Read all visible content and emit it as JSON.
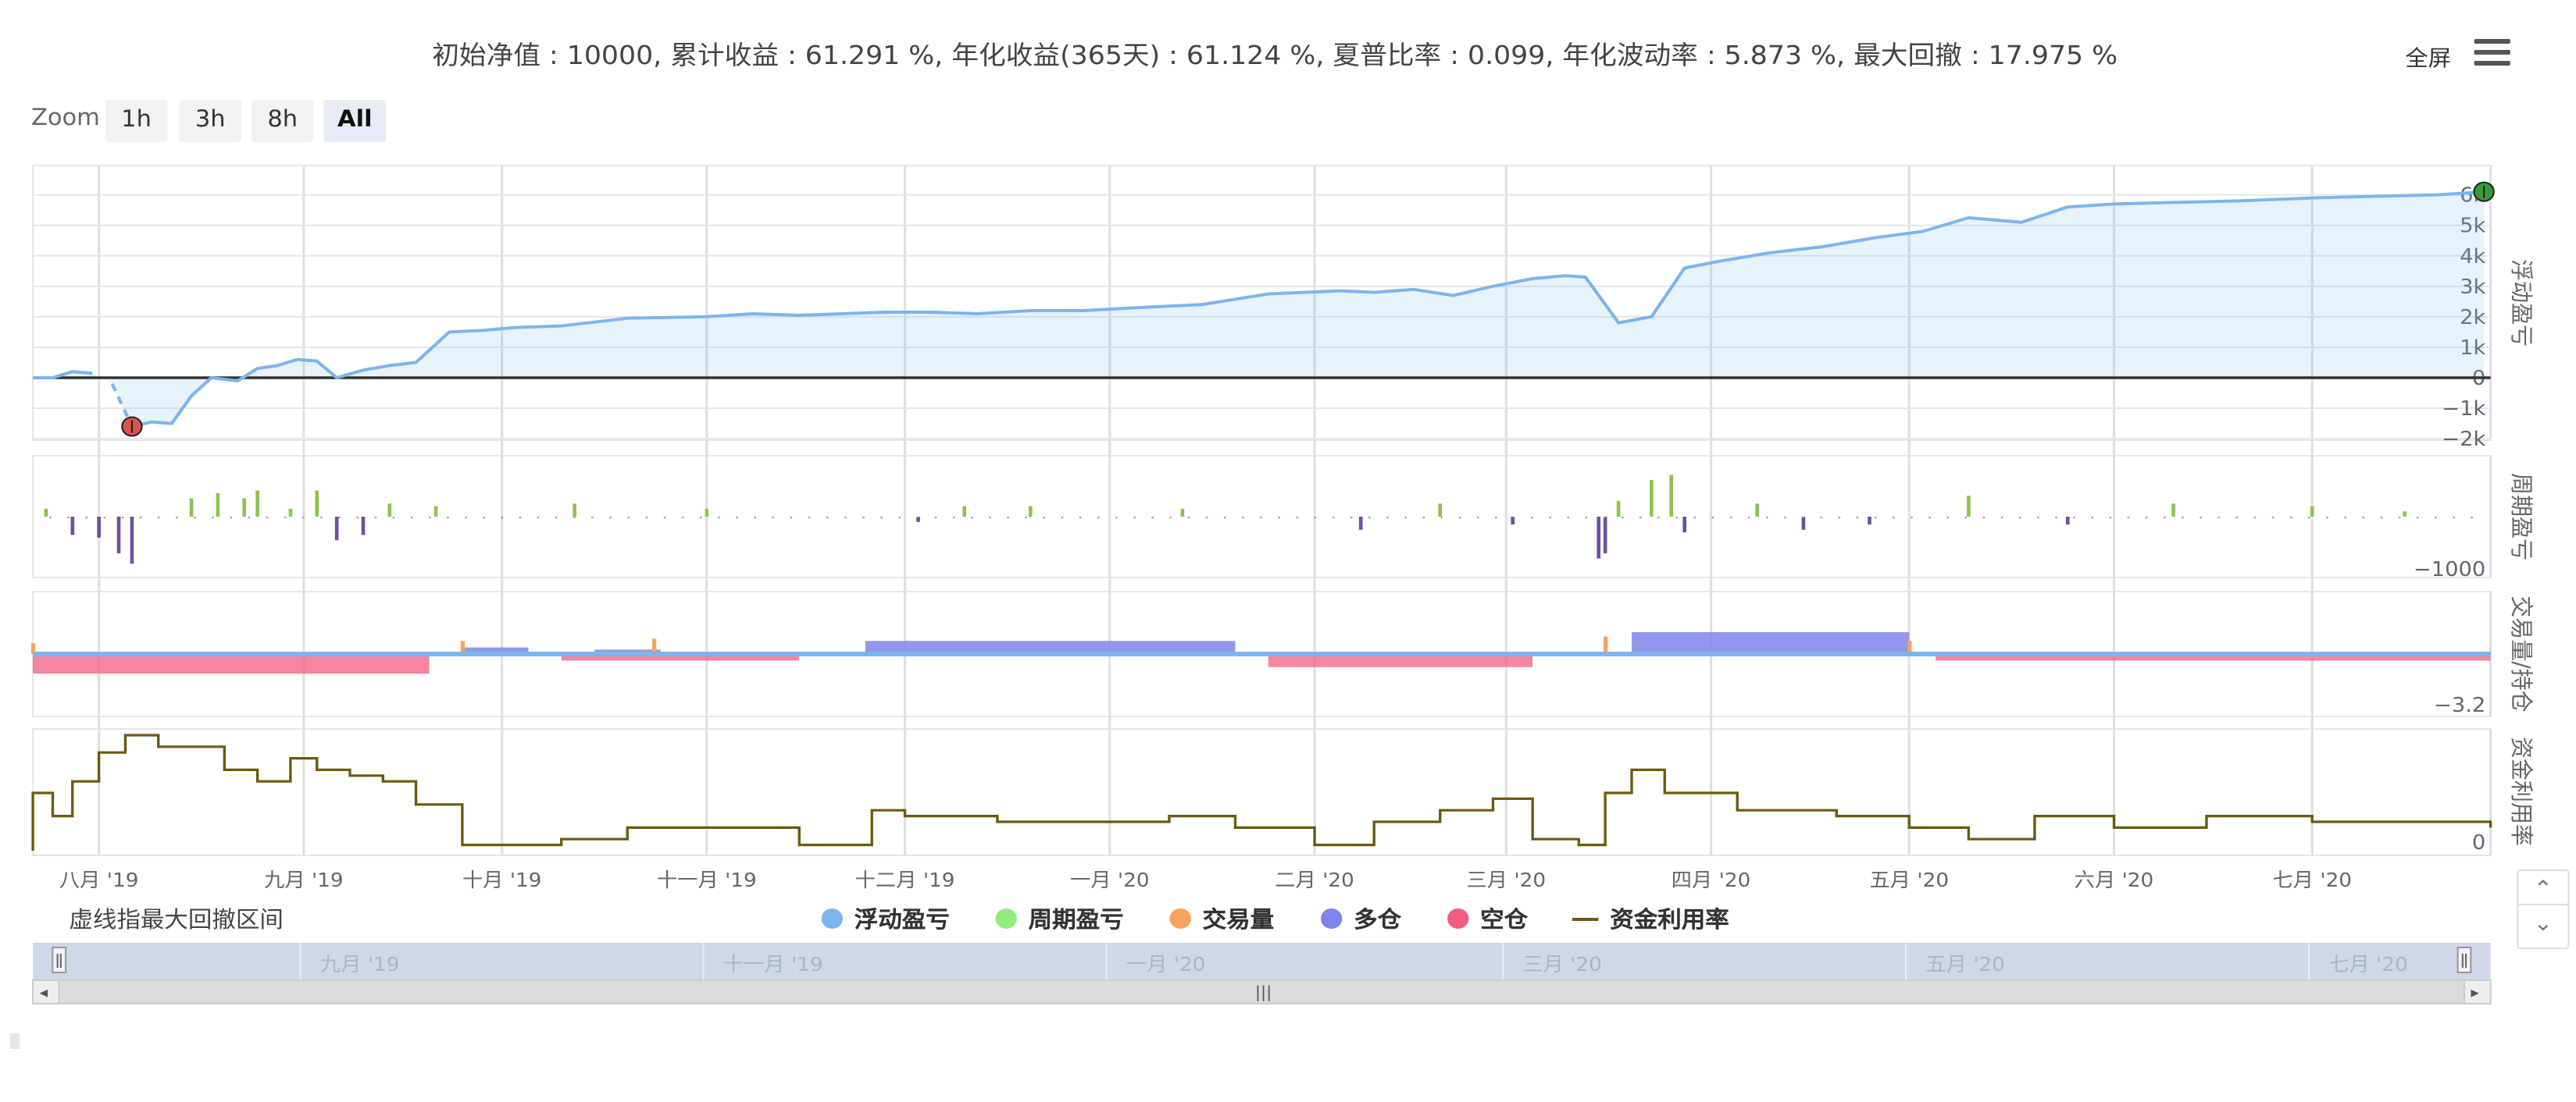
{
  "summary": "初始净值 : 10000, 累计收益 : 61.291 %, 年化收益(365天) : 61.124 %, 夏普比率 : 0.099, 年化波动率 : 5.873 %, 最大回撤 : 17.975 %",
  "toolbar": {
    "fullscreen_label": "全屏",
    "menu_icon": "hamburger-menu-icon"
  },
  "zoom": {
    "label": "Zoom",
    "buttons": [
      "1h",
      "3h",
      "8h",
      "All"
    ],
    "selected": "All"
  },
  "note": "虚线指最大回撤区间",
  "legend": [
    {
      "name": "浮动盈亏",
      "color": "#7cb5ec",
      "symbol": "dot"
    },
    {
      "name": "周期盈亏",
      "color": "#90ed7d",
      "symbol": "dot"
    },
    {
      "name": "交易量",
      "color": "#f7a35c",
      "symbol": "dot"
    },
    {
      "name": "多仓",
      "color": "#8085e9",
      "symbol": "dot"
    },
    {
      "name": "空仓",
      "color": "#f15c80",
      "symbol": "dot"
    },
    {
      "name": "资金利用率",
      "color": "#6b5a0e",
      "symbol": "line"
    }
  ],
  "chart_data": {
    "type": "line",
    "x_ticks": [
      "八月 '19",
      "九月 '19",
      "十月 '19",
      "十一月 '19",
      "十二月 '19",
      "一月 '20",
      "二月 '20",
      "三月 '20",
      "四月 '20",
      "五月 '20",
      "六月 '20",
      "七月 '20"
    ],
    "navigator_ticks": [
      "九月 '19",
      "十一月 '19",
      "一月 '20",
      "三月 '20",
      "五月 '20",
      "七月 '20"
    ],
    "panels": [
      {
        "name": "浮动盈亏",
        "color": "#7cb5ec",
        "type": "area",
        "yticks": [
          "6k",
          "5k",
          "4k",
          "3k",
          "2k",
          "1k",
          "0",
          "−1k",
          "−2k"
        ],
        "ylim": [
          -2000,
          6000
        ],
        "dates": [
          "2019-07-22",
          "2019-07-25",
          "2019-07-28",
          "2019-07-31",
          "2019-08-03",
          "2019-08-06",
          "2019-08-09",
          "2019-08-12",
          "2019-08-15",
          "2019-08-18",
          "2019-08-22",
          "2019-08-25",
          "2019-08-28",
          "2019-08-31",
          "2019-09-03",
          "2019-09-06",
          "2019-09-10",
          "2019-09-14",
          "2019-09-18",
          "2019-09-23",
          "2019-09-28",
          "2019-10-03",
          "2019-10-10",
          "2019-10-20",
          "2019-11-01",
          "2019-11-08",
          "2019-11-15",
          "2019-11-28",
          "2019-12-05",
          "2019-12-12",
          "2019-12-20",
          "2019-12-28",
          "2020-01-05",
          "2020-01-15",
          "2020-01-25",
          "2020-02-05",
          "2020-02-10",
          "2020-02-16",
          "2020-02-22",
          "2020-02-28",
          "2020-03-05",
          "2020-03-10",
          "2020-03-13",
          "2020-03-18",
          "2020-03-23",
          "2020-03-28",
          "2020-04-03",
          "2020-04-10",
          "2020-04-18",
          "2020-04-26",
          "2020-05-03",
          "2020-05-10",
          "2020-05-18",
          "2020-05-25",
          "2020-06-01",
          "2020-06-10",
          "2020-06-20",
          "2020-07-01",
          "2020-07-10",
          "2020-07-20",
          "2020-07-27"
        ],
        "values": [
          0,
          0,
          200,
          150,
          -200,
          -1600,
          -1450,
          -1500,
          -600,
          0,
          -100,
          300,
          400,
          600,
          550,
          0,
          250,
          400,
          500,
          1500,
          1550,
          1650,
          1700,
          1950,
          2000,
          2100,
          2050,
          2150,
          2150,
          2100,
          2200,
          2200,
          2300,
          2400,
          2750,
          2850,
          2800,
          2900,
          2700,
          3000,
          3250,
          3350,
          3300,
          1800,
          2000,
          3600,
          3850,
          4100,
          4300,
          4600,
          4800,
          5250,
          5100,
          5600,
          5700,
          5750,
          5800,
          5900,
          5950,
          6000,
          6100
        ],
        "drawdown": {
          "start": "2019-08-01",
          "end": "2019-08-06",
          "min": -1600
        },
        "markers": [
          {
            "date": "2019-08-06",
            "value": -1600,
            "color": "#d9534f"
          },
          {
            "date": "2020-07-27",
            "value": 6100,
            "color": "#3a9a3a"
          }
        ]
      },
      {
        "name": "周期盈亏",
        "type": "bar",
        "yticks": [
          "−1000"
        ],
        "positive_color": "#90c14f",
        "negative_color": "#6e4f9e",
        "dates": [
          "2019-07-24",
          "2019-07-28",
          "2019-08-01",
          "2019-08-04",
          "2019-08-06",
          "2019-08-15",
          "2019-08-19",
          "2019-08-23",
          "2019-08-25",
          "2019-08-30",
          "2019-09-03",
          "2019-09-06",
          "2019-09-10",
          "2019-09-14",
          "2019-09-21",
          "2019-10-12",
          "2019-11-01",
          "2019-12-03",
          "2019-12-10",
          "2019-12-20",
          "2020-01-12",
          "2020-02-08",
          "2020-02-20",
          "2020-03-02",
          "2020-03-15",
          "2020-03-16",
          "2020-03-18",
          "2020-03-23",
          "2020-03-26",
          "2020-03-28",
          "2020-04-08",
          "2020-04-15",
          "2020-04-25",
          "2020-05-10",
          "2020-05-25",
          "2020-06-10",
          "2020-07-01",
          "2020-07-15"
        ],
        "values": [
          150,
          -350,
          -400,
          -700,
          -900,
          350,
          450,
          350,
          500,
          150,
          500,
          -450,
          -350,
          250,
          200,
          250,
          150,
          -100,
          200,
          200,
          150,
          -250,
          250,
          -150,
          -800,
          -700,
          300,
          700,
          800,
          -300,
          250,
          -250,
          -150,
          400,
          -150,
          250,
          200,
          100
        ]
      },
      {
        "name": "交易量/持仓",
        "type": "area",
        "yticks": [
          "−3.2"
        ],
        "series": [
          {
            "name": "多仓",
            "color": "#8085e9",
            "segments": [
              {
                "start": "2019-09-25",
                "end": "2019-10-05",
                "value": 0.3
              },
              {
                "start": "2019-10-15",
                "end": "2019-10-25",
                "value": 0.2
              },
              {
                "start": "2019-11-25",
                "end": "2020-01-20",
                "value": 0.6
              },
              {
                "start": "2020-03-20",
                "end": "2020-05-01",
                "value": 1.0
              }
            ]
          },
          {
            "name": "空仓",
            "color": "#f15c80",
            "segments": [
              {
                "start": "2019-07-22",
                "end": "2019-09-20",
                "value": -0.9
              },
              {
                "start": "2019-10-10",
                "end": "2019-11-15",
                "value": -0.3
              },
              {
                "start": "2020-01-25",
                "end": "2020-03-05",
                "value": -0.6
              },
              {
                "start": "2020-05-05",
                "end": "2020-07-28",
                "value": -0.3
              }
            ]
          },
          {
            "name": "交易量",
            "color": "#f7a35c",
            "dates": [
              "2019-07-22",
              "2019-09-25",
              "2019-10-24",
              "2020-03-16",
              "2020-05-01"
            ],
            "values": [
              0.5,
              0.6,
              0.7,
              0.8,
              0.6
            ]
          }
        ]
      },
      {
        "name": "资金利用率",
        "type": "step",
        "color": "#6b5a0e",
        "yticks": [
          "0"
        ],
        "dates": [
          "2019-07-22",
          "2019-07-25",
          "2019-07-28",
          "2019-08-01",
          "2019-08-05",
          "2019-08-10",
          "2019-08-20",
          "2019-08-25",
          "2019-08-30",
          "2019-09-03",
          "2019-09-08",
          "2019-09-13",
          "2019-09-18",
          "2019-09-25",
          "2019-10-01",
          "2019-10-10",
          "2019-10-20",
          "2019-11-01",
          "2019-11-15",
          "2019-11-26",
          "2019-12-01",
          "2019-12-15",
          "2020-01-10",
          "2020-01-20",
          "2020-02-01",
          "2020-02-10",
          "2020-02-20",
          "2020-02-28",
          "2020-03-05",
          "2020-03-12",
          "2020-03-16",
          "2020-03-20",
          "2020-03-25",
          "2020-04-05",
          "2020-04-20",
          "2020-05-01",
          "2020-05-10",
          "2020-05-20",
          "2020-06-01",
          "2020-06-15",
          "2020-07-01",
          "2020-07-28"
        ],
        "values": [
          0.5,
          0.3,
          0.6,
          0.85,
          1.0,
          0.9,
          0.7,
          0.6,
          0.8,
          0.7,
          0.65,
          0.6,
          0.4,
          0.05,
          0.05,
          0.1,
          0.2,
          0.2,
          0.05,
          0.35,
          0.3,
          0.25,
          0.3,
          0.2,
          0.05,
          0.25,
          0.35,
          0.45,
          0.1,
          0.05,
          0.5,
          0.7,
          0.5,
          0.35,
          0.3,
          0.2,
          0.1,
          0.3,
          0.2,
          0.3,
          0.25,
          0.2
        ]
      }
    ]
  }
}
